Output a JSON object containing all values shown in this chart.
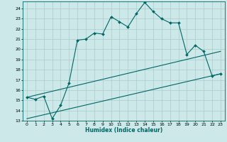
{
  "xlabel": "Humidex (Indice chaleur)",
  "bg_color": "#cce8e8",
  "grid_color": "#aacccc",
  "line_color": "#006666",
  "xlim": [
    -0.5,
    23.5
  ],
  "ylim": [
    13,
    24.7
  ],
  "yticks": [
    13,
    14,
    15,
    16,
    17,
    18,
    19,
    20,
    21,
    22,
    23,
    24
  ],
  "xticks": [
    0,
    1,
    2,
    3,
    4,
    5,
    6,
    7,
    8,
    9,
    10,
    11,
    12,
    13,
    14,
    15,
    16,
    17,
    18,
    19,
    20,
    21,
    22,
    23
  ],
  "line1_x": [
    0,
    1,
    2,
    3,
    4,
    5,
    6,
    7,
    8,
    9,
    10,
    11,
    12,
    13,
    14,
    15,
    16,
    17,
    18,
    19,
    20,
    21,
    22,
    23
  ],
  "line1_y": [
    15.3,
    15.1,
    15.4,
    13.2,
    14.5,
    16.7,
    20.9,
    21.0,
    21.6,
    21.5,
    23.2,
    22.7,
    22.2,
    23.5,
    24.6,
    23.7,
    23.0,
    22.6,
    22.6,
    19.5,
    20.4,
    19.8,
    17.4,
    17.6
  ],
  "line2_x": [
    0,
    23
  ],
  "line2_y": [
    15.3,
    19.8
  ],
  "line3_x": [
    0,
    23
  ],
  "line3_y": [
    13.2,
    17.6
  ]
}
